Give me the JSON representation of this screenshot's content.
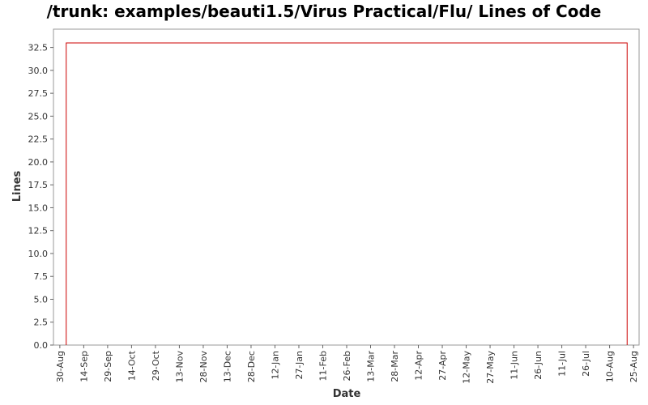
{
  "chart_data": {
    "type": "line",
    "title": "/trunk: examples/beauti1.5/Virus Practical/Flu/ Lines of Code",
    "x_label": "Date",
    "y_label": "Lines",
    "x": [
      4,
      4,
      356,
      356
    ],
    "series": [
      {
        "color": "#cc0000",
        "values": [
          0,
          33,
          33,
          0
        ]
      }
    ],
    "xlim": [
      -4,
      363.5
    ],
    "xticks": [
      {
        "value": 0,
        "label": "30-Aug"
      },
      {
        "value": 15,
        "label": "14-Sep"
      },
      {
        "value": 30,
        "label": "29-Sep"
      },
      {
        "value": 45,
        "label": "14-Oct"
      },
      {
        "value": 60,
        "label": "29-Oct"
      },
      {
        "value": 75,
        "label": "13-Nov"
      },
      {
        "value": 90,
        "label": "28-Nov"
      },
      {
        "value": 105,
        "label": "13-Dec"
      },
      {
        "value": 120,
        "label": "28-Dec"
      },
      {
        "value": 135,
        "label": "12-Jan"
      },
      {
        "value": 150,
        "label": "27-Jan"
      },
      {
        "value": 165,
        "label": "11-Feb"
      },
      {
        "value": 180,
        "label": "26-Feb"
      },
      {
        "value": 195,
        "label": "13-Mar"
      },
      {
        "value": 210,
        "label": "28-Mar"
      },
      {
        "value": 225,
        "label": "12-Apr"
      },
      {
        "value": 240,
        "label": "27-Apr"
      },
      {
        "value": 255,
        "label": "12-May"
      },
      {
        "value": 270,
        "label": "27-May"
      },
      {
        "value": 285,
        "label": "11-Jun"
      },
      {
        "value": 300,
        "label": "26-Jun"
      },
      {
        "value": 315,
        "label": "11-Jul"
      },
      {
        "value": 330,
        "label": "26-Jul"
      },
      {
        "value": 345,
        "label": "10-Aug"
      },
      {
        "value": 360,
        "label": "25-Aug"
      }
    ],
    "ylim": [
      0,
      34.5
    ],
    "yticks": [
      {
        "value": 0,
        "label": "0.0"
      },
      {
        "value": 2.5,
        "label": "2.5"
      },
      {
        "value": 5,
        "label": "5.0"
      },
      {
        "value": 7.5,
        "label": "7.5"
      },
      {
        "value": 10,
        "label": "10.0"
      },
      {
        "value": 12.5,
        "label": "12.5"
      },
      {
        "value": 15,
        "label": "15.0"
      },
      {
        "value": 17.5,
        "label": "17.5"
      },
      {
        "value": 20,
        "label": "20.0"
      },
      {
        "value": 22.5,
        "label": "22.5"
      },
      {
        "value": 25,
        "label": "25.0"
      },
      {
        "value": 27.5,
        "label": "27.5"
      },
      {
        "value": 30,
        "label": "30.0"
      },
      {
        "value": 32.5,
        "label": "32.5"
      }
    ],
    "grid": false
  }
}
